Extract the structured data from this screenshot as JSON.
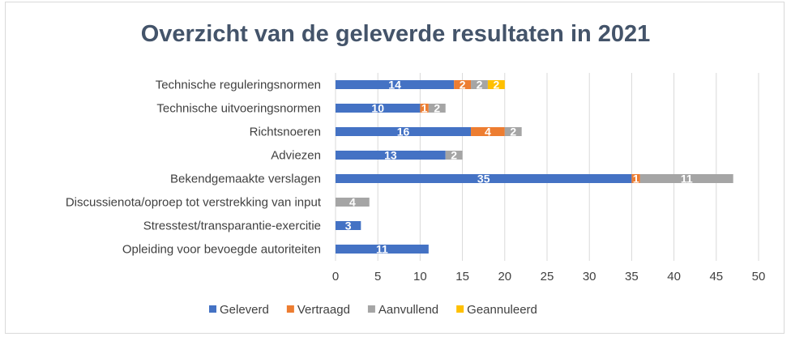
{
  "chart_data": {
    "type": "bar",
    "orientation": "horizontal",
    "stacked": true,
    "title": "Overzicht van de geleverde resultaten in 2021",
    "categories": [
      "Technische reguleringsnormen",
      "Technische uitvoeringsnormen",
      "Richtsnoeren",
      "Adviezen",
      "Bekendgemaakte verslagen",
      "Discussienota/oproep tot verstrekking van input",
      "Stresstest/transparantie-exercitie",
      "Opleiding voor bevoegde autoriteiten"
    ],
    "series": [
      {
        "name": "Geleverd",
        "color": "#4472c4",
        "values": [
          14,
          10,
          16,
          13,
          35,
          null,
          3,
          11
        ]
      },
      {
        "name": "Vertraagd",
        "color": "#ed7d31",
        "values": [
          2,
          1,
          4,
          null,
          1,
          null,
          null,
          null
        ]
      },
      {
        "name": "Aanvullend",
        "color": "#a5a5a5",
        "values": [
          2,
          2,
          2,
          2,
          11,
          4,
          null,
          null
        ]
      },
      {
        "name": "Geannuleerd",
        "color": "#ffc000",
        "values": [
          2,
          null,
          null,
          null,
          null,
          null,
          null,
          null
        ]
      }
    ],
    "xlim": [
      0,
      50
    ],
    "xticks": [
      0,
      5,
      10,
      15,
      20,
      25,
      30,
      35,
      40,
      45,
      50
    ],
    "grid": true,
    "legend_position": "bottom"
  }
}
